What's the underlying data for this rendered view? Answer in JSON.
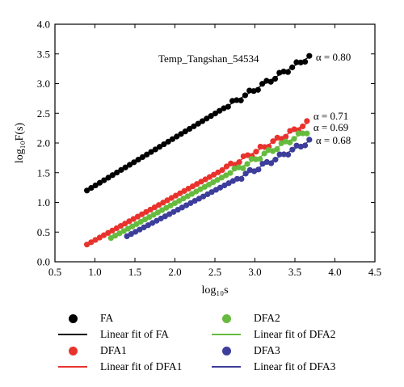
{
  "chart_data": {
    "type": "scatter",
    "title": "",
    "xlabel": "log₁₀s",
    "ylabel": "log₁₀F(s)",
    "xlim": [
      0.5,
      4.5
    ],
    "ylim": [
      0.0,
      4.0
    ],
    "xticks": [
      "0.5",
      "1.0",
      "1.5",
      "2.0",
      "2.5",
      "3.0",
      "3.5",
      "4.0",
      "4.5"
    ],
    "yticks": [
      "0.0",
      "0.5",
      "1.0",
      "1.5",
      "2.0",
      "2.5",
      "3.0",
      "3.5",
      "4.0"
    ],
    "grid": false,
    "annotation_text": "Temp_Tangshan_54534",
    "series": [
      {
        "name": "FA",
        "color": "#000000",
        "x_start": 0.9,
        "x_end": 3.68,
        "y_start": 1.2,
        "y_end": 3.45,
        "alpha_label": "α = 0.80",
        "fit_name": "Linear fit of FA"
      },
      {
        "name": "DFA1",
        "color": "#e8332d",
        "x_start": 0.9,
        "x_end": 3.65,
        "y_start": 0.29,
        "y_end": 2.33,
        "alpha_label": "α = 0.71",
        "fit_name": "Linear fit of DFA1"
      },
      {
        "name": "DFA2",
        "color": "#66bb3e",
        "x_start": 1.2,
        "x_end": 3.65,
        "y_start": 0.4,
        "y_end": 2.2,
        "alpha_label": "α = 0.69",
        "fit_name": "Linear fit of DFA2"
      },
      {
        "name": "DFA3",
        "color": "#3d3d9b",
        "x_start": 1.4,
        "x_end": 3.68,
        "y_start": 0.43,
        "y_end": 2.03,
        "alpha_label": "α = 0.68",
        "fit_name": "Linear fit of DFA3"
      }
    ]
  },
  "legend": {
    "fa": "FA",
    "fa_fit": "Linear fit of FA",
    "dfa1": "DFA1",
    "dfa1_fit": "Linear fit of DFA1",
    "dfa2": "DFA2",
    "dfa2_fit": "Linear fit of DFA2",
    "dfa3": "DFA3",
    "dfa3_fit": "Linear fit of DFA3"
  }
}
